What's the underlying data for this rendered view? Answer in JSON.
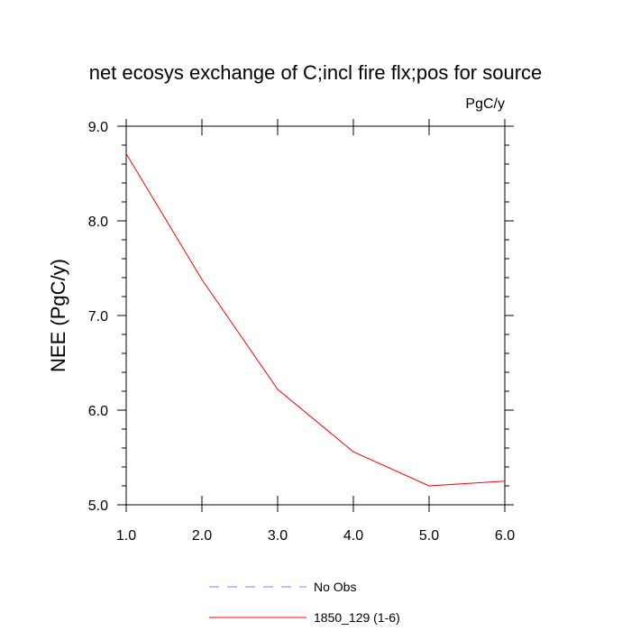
{
  "chart_data": {
    "type": "line",
    "title": "net ecosys exchange of C;incl fire flx;pos for source",
    "units": "PgC/y",
    "ylabel": "NEE  (PgC/y)",
    "xlabel": "",
    "xlim": [
      1.0,
      6.0
    ],
    "ylim": [
      5.0,
      9.0
    ],
    "x_ticks": [
      "1.0",
      "2.0",
      "3.0",
      "4.0",
      "5.0",
      "6.0"
    ],
    "y_ticks": [
      "5.0",
      "6.0",
      "7.0",
      "8.0",
      "9.0"
    ],
    "grid": false,
    "legend_position": "bottom",
    "series": [
      {
        "name": "No Obs",
        "color": "#8080ff",
        "style": "dashed",
        "x": [],
        "values": []
      },
      {
        "name": "1850_129 (1-6)",
        "color": "#ff0000",
        "style": "solid",
        "x": [
          1.0,
          2.0,
          3.0,
          4.0,
          5.0,
          6.0
        ],
        "values": [
          8.71,
          7.38,
          6.22,
          5.56,
          5.2,
          5.25
        ]
      }
    ]
  }
}
